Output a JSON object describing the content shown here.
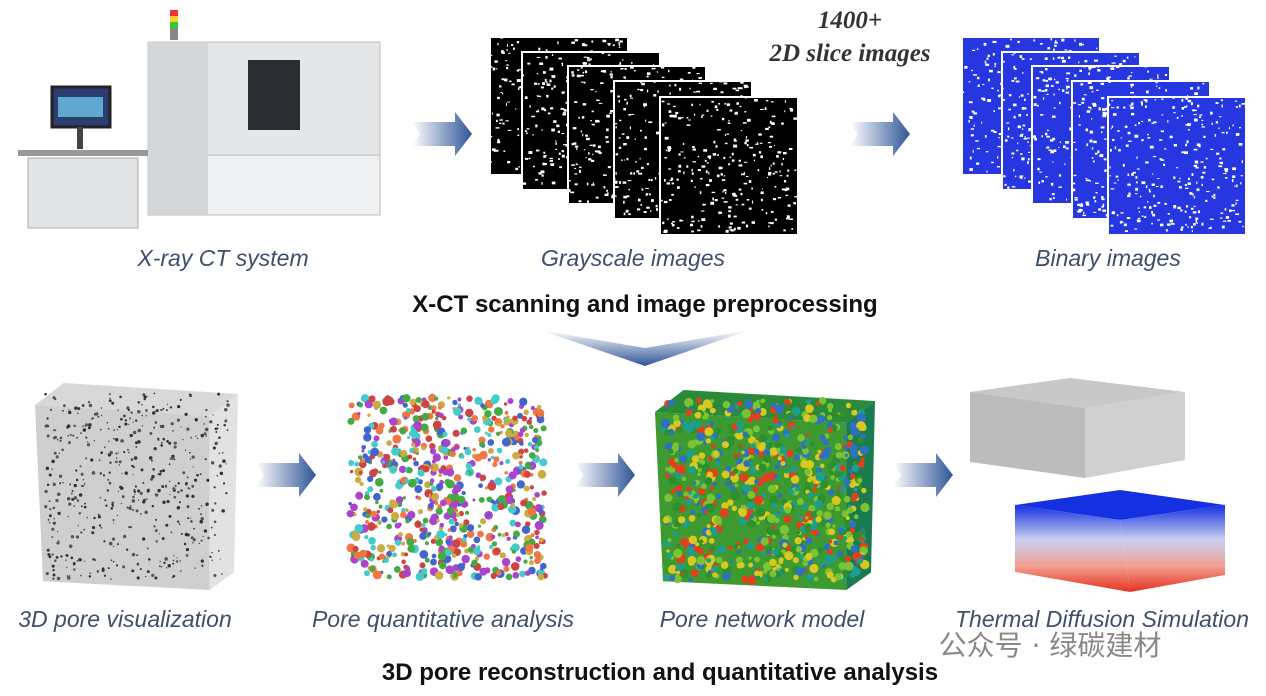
{
  "top": {
    "steps": [
      {
        "label": "X-ray CT system"
      },
      {
        "label": "Grayscale images"
      },
      {
        "label": "Binary images"
      }
    ],
    "annotation": {
      "line1": "1400+",
      "line2": "2D slice images"
    },
    "caption": "X-CT scanning and image preprocessing"
  },
  "bottom": {
    "steps": [
      {
        "label": "3D pore visualization"
      },
      {
        "label": "Pore quantitative analysis"
      },
      {
        "label": "Pore network model"
      },
      {
        "label": "Thermal Diffusion Simulation"
      }
    ],
    "caption": "3D pore reconstruction and quantitative analysis"
  },
  "watermark": "公众号 · 绿碳建材"
}
